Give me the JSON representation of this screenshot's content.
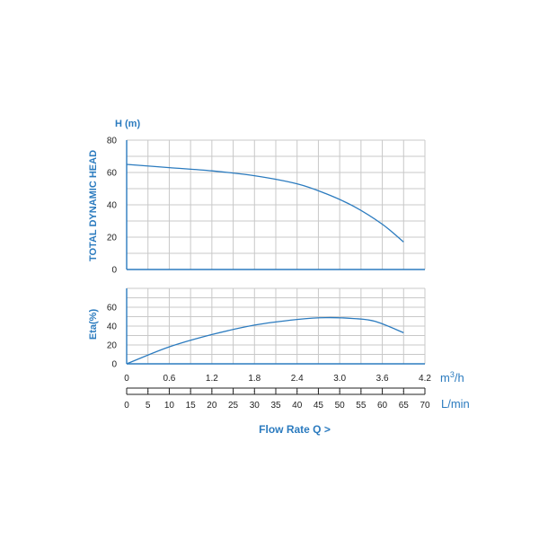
{
  "colors": {
    "accent": "#2b7bbf",
    "grid": "#c8c8c8",
    "text": "#222222"
  },
  "labels": {
    "h_unit": "H (m)",
    "head_label": "TOTAL DYNAMIC HEAD",
    "eta_label": "Eta(%)",
    "m3h_unit_base": "m",
    "m3h_unit_sup": "3",
    "m3h_unit_tail": "/h",
    "lmin_unit": "L/min",
    "flow_title": "Flow Rate Q >"
  },
  "chart_data": [
    {
      "type": "line",
      "name": "head-chart",
      "ylabel": "TOTAL DYNAMIC HEAD",
      "yunit": "H (m)",
      "ylim": [
        0,
        80
      ],
      "yticks": [
        0,
        20,
        40,
        60,
        80
      ],
      "xlim": [
        0,
        4.2
      ],
      "grid": true,
      "series": [
        {
          "x": [
            0,
            0.6,
            1.2,
            1.8,
            2.4,
            2.8,
            3.2,
            3.6,
            3.9
          ],
          "y": [
            65,
            63,
            61,
            58,
            53,
            47,
            39,
            28,
            17
          ]
        }
      ]
    },
    {
      "type": "line",
      "name": "eta-chart",
      "ylabel": "Eta(%)",
      "ylim": [
        0,
        80
      ],
      "yticks": [
        0,
        20,
        40,
        60
      ],
      "xlim": [
        0,
        4.2
      ],
      "grid": true,
      "series": [
        {
          "x": [
            0,
            0.6,
            1.2,
            1.8,
            2.4,
            2.8,
            3.2,
            3.5,
            3.9
          ],
          "y": [
            0,
            18,
            31,
            41,
            47,
            49,
            48,
            45,
            33
          ]
        }
      ]
    }
  ],
  "axes": {
    "m3h_ticks": [
      "0",
      "0.6",
      "1.2",
      "1.8",
      "2.4",
      "3.0",
      "3.6",
      "4.2"
    ],
    "m3h_values": [
      0,
      0.6,
      1.2,
      1.8,
      2.4,
      3.0,
      3.6,
      4.2
    ],
    "lmin_ticks": [
      "0",
      "5",
      "10",
      "15",
      "20",
      "25",
      "30",
      "35",
      "40",
      "45",
      "50",
      "55",
      "60",
      "65",
      "70"
    ],
    "lmin_values": [
      0,
      5,
      10,
      15,
      20,
      25,
      30,
      35,
      40,
      45,
      50,
      55,
      60,
      65,
      70
    ]
  }
}
